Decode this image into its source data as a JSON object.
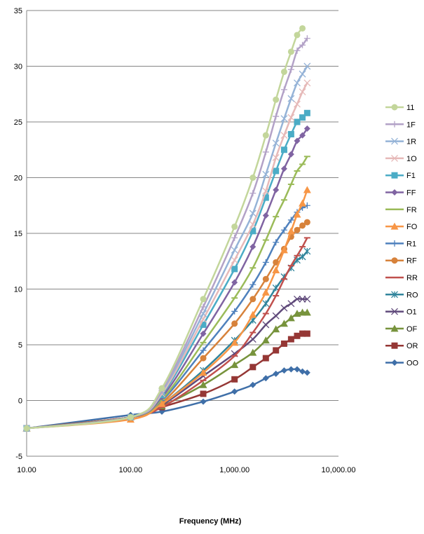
{
  "chart_data": {
    "type": "line",
    "title": "",
    "xlabel": "Frequency (MHz)",
    "ylabel": "",
    "xscale": "log",
    "xlim": [
      10,
      10000
    ],
    "ylim": [
      -5,
      35
    ],
    "x_ticks": [
      "10.00",
      "100.00",
      "1,000.00",
      "10,000.00"
    ],
    "y_ticks": [
      "-5",
      "0",
      "5",
      "10",
      "15",
      "20",
      "25",
      "30",
      "35"
    ],
    "grid": "horizontal",
    "legend_position": "right",
    "x": [
      10,
      100,
      200,
      500,
      1000,
      1500,
      2000,
      2500,
      3000,
      3500,
      4000,
      4500,
      5000
    ],
    "series": [
      {
        "name": "11",
        "color": "#c3d69b",
        "marker": "circle",
        "values": [
          -2.5,
          -1.5,
          1.1,
          9.1,
          15.6,
          20.0,
          23.8,
          27.0,
          29.5,
          31.3,
          32.8,
          33.4,
          null
        ]
      },
      {
        "name": "1F",
        "color": "#b3a2c7",
        "marker": "plus",
        "values": [
          -2.5,
          -1.5,
          0.9,
          8.4,
          14.6,
          18.6,
          22.3,
          25.5,
          27.9,
          29.7,
          31.4,
          31.9,
          32.5
        ]
      },
      {
        "name": "1R",
        "color": "#95b3d7",
        "marker": "x",
        "values": [
          -2.5,
          -1.5,
          0.8,
          7.8,
          13.5,
          16.8,
          20.3,
          23.1,
          25.3,
          27.1,
          28.5,
          29.3,
          30.0
        ]
      },
      {
        "name": "1O",
        "color": "#e6b9b8",
        "marker": "x",
        "values": [
          -2.5,
          -1.5,
          0.6,
          7.3,
          12.6,
          15.8,
          18.8,
          21.8,
          23.8,
          25.4,
          26.6,
          27.7,
          28.5
        ]
      },
      {
        "name": "F1",
        "color": "#4bacc6",
        "marker": "square",
        "values": [
          -2.5,
          -1.5,
          0.5,
          6.8,
          11.8,
          15.2,
          18.2,
          20.6,
          22.5,
          23.9,
          25.0,
          25.4,
          25.8
        ]
      },
      {
        "name": "FF",
        "color": "#8064a2",
        "marker": "diamond",
        "values": [
          -2.5,
          -1.5,
          0.3,
          6.0,
          10.6,
          13.8,
          16.6,
          18.9,
          20.8,
          22.1,
          23.3,
          23.8,
          24.4
        ]
      },
      {
        "name": "FR",
        "color": "#9bbb59",
        "marker": "dash",
        "values": [
          -2.5,
          -1.5,
          0.1,
          5.2,
          9.2,
          11.9,
          14.4,
          16.5,
          18.0,
          19.4,
          20.6,
          21.2,
          21.9
        ]
      },
      {
        "name": "FO",
        "color": "#f79646",
        "marker": "triangle",
        "values": [
          -2.5,
          -1.7,
          -0.3,
          2.5,
          5.2,
          7.7,
          9.7,
          11.7,
          13.5,
          15.2,
          16.7,
          17.7,
          18.9
        ]
      },
      {
        "name": "R1",
        "color": "#4f81bd",
        "marker": "plus",
        "values": [
          -2.5,
          -1.5,
          0.0,
          4.5,
          8.0,
          10.4,
          12.4,
          14.2,
          15.3,
          16.2,
          16.9,
          17.3,
          17.5
        ]
      },
      {
        "name": "RF",
        "color": "#d7823b",
        "marker": "circle",
        "values": [
          -2.5,
          -1.5,
          -0.2,
          3.8,
          6.9,
          9.1,
          10.9,
          12.4,
          13.6,
          14.7,
          15.3,
          15.7,
          16.0
        ]
      },
      {
        "name": "RR",
        "color": "#c0504d",
        "marker": "dash",
        "values": [
          -2.5,
          -1.5,
          -0.6,
          1.8,
          4.0,
          6.1,
          7.8,
          9.4,
          10.9,
          12.1,
          13.0,
          13.8,
          14.6
        ]
      },
      {
        "name": "RO",
        "color": "#31859c",
        "marker": "star",
        "values": [
          -2.5,
          -1.5,
          -0.3,
          2.7,
          5.4,
          7.2,
          8.7,
          10.1,
          11.1,
          11.9,
          12.6,
          12.9,
          13.4
        ]
      },
      {
        "name": "O1",
        "color": "#604a7b",
        "marker": "x",
        "values": [
          -2.5,
          -1.5,
          -0.4,
          2.2,
          4.2,
          5.5,
          6.8,
          7.6,
          8.3,
          8.7,
          9.1,
          9.1,
          9.1
        ]
      },
      {
        "name": "OF",
        "color": "#77933c",
        "marker": "triangle",
        "values": [
          -2.5,
          -1.5,
          -0.5,
          1.4,
          3.2,
          4.3,
          5.4,
          6.4,
          6.9,
          7.4,
          7.8,
          7.9,
          7.9
        ]
      },
      {
        "name": "OR",
        "color": "#953735",
        "marker": "square",
        "values": [
          -2.5,
          -1.5,
          -0.6,
          0.6,
          1.9,
          3.0,
          3.8,
          4.5,
          5.1,
          5.5,
          5.8,
          6.0,
          6.0
        ]
      },
      {
        "name": "OO",
        "color": "#3f6fa8",
        "marker": "diamond",
        "values": [
          -2.5,
          -1.3,
          -1.0,
          -0.1,
          0.8,
          1.4,
          2.0,
          2.4,
          2.7,
          2.8,
          2.8,
          2.6,
          2.5
        ]
      }
    ]
  }
}
